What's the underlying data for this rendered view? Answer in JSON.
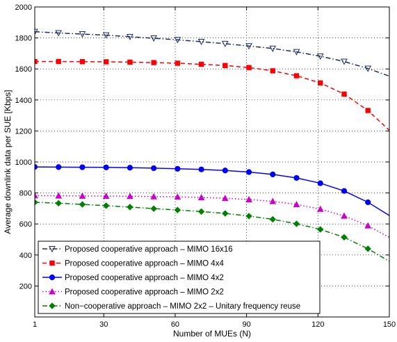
{
  "chart_data": {
    "type": "line",
    "title": "",
    "xlabel": "Number of MUEs (N)",
    "ylabel": "Average downlink data per SUE [Kbps]",
    "xlim": [
      1,
      150
    ],
    "ylim": [
      0,
      2000
    ],
    "xticks": [
      1,
      30,
      60,
      90,
      120,
      150
    ],
    "yticks": [
      200,
      400,
      600,
      800,
      1000,
      1200,
      1400,
      1600,
      1800,
      2000
    ],
    "grid": true,
    "legend_position": "bottom-left",
    "x": [
      1,
      11,
      21,
      31,
      41,
      51,
      61,
      71,
      81,
      91,
      101,
      111,
      121,
      131,
      141,
      151
    ],
    "series": [
      {
        "name": "Proposed cooperative approach – MIMO 16x16",
        "color": "#1a2a66",
        "line_style": "dashdot",
        "marker": "triangle-down",
        "marker_fill": "none",
        "values": [
          1840,
          1832,
          1825,
          1818,
          1808,
          1798,
          1788,
          1776,
          1763,
          1748,
          1732,
          1710,
          1682,
          1648,
          1603,
          1548
        ]
      },
      {
        "name": "Proposed cooperative approach – MIMO 4x4",
        "color": "#ff0000",
        "line_style": "dashed",
        "marker": "square",
        "marker_fill": "#ff0000",
        "values": [
          1648,
          1648,
          1647,
          1646,
          1644,
          1641,
          1637,
          1630,
          1622,
          1609,
          1588,
          1556,
          1510,
          1438,
          1332,
          1190
        ]
      },
      {
        "name": "Proposed cooperative approach – MIMO 4x2",
        "color": "#0000ff",
        "line_style": "solid",
        "marker": "circle",
        "marker_fill": "#0000ff",
        "values": [
          968,
          967,
          966,
          965,
          963,
          960,
          956,
          952,
          945,
          935,
          920,
          897,
          863,
          813,
          740,
          645
        ]
      },
      {
        "name": "Proposed cooperative approach – MIMO 2x2",
        "color": "#cc00cc",
        "line_style": "dotted",
        "marker": "triangle-up",
        "marker_fill": "#cc00cc",
        "values": [
          783,
          782,
          781,
          780,
          779,
          777,
          775,
          771,
          766,
          758,
          746,
          726,
          696,
          652,
          589,
          505
        ]
      },
      {
        "name": "Non−cooperative approach – MIMO 2x2 – Unitary frequency reuse",
        "color": "#008000",
        "line_style": "dashdot",
        "marker": "diamond",
        "marker_fill": "#008000",
        "values": [
          740,
          734,
          726,
          718,
          709,
          699,
          690,
          680,
          668,
          651,
          630,
          601,
          565,
          514,
          440,
          350
        ]
      }
    ]
  }
}
